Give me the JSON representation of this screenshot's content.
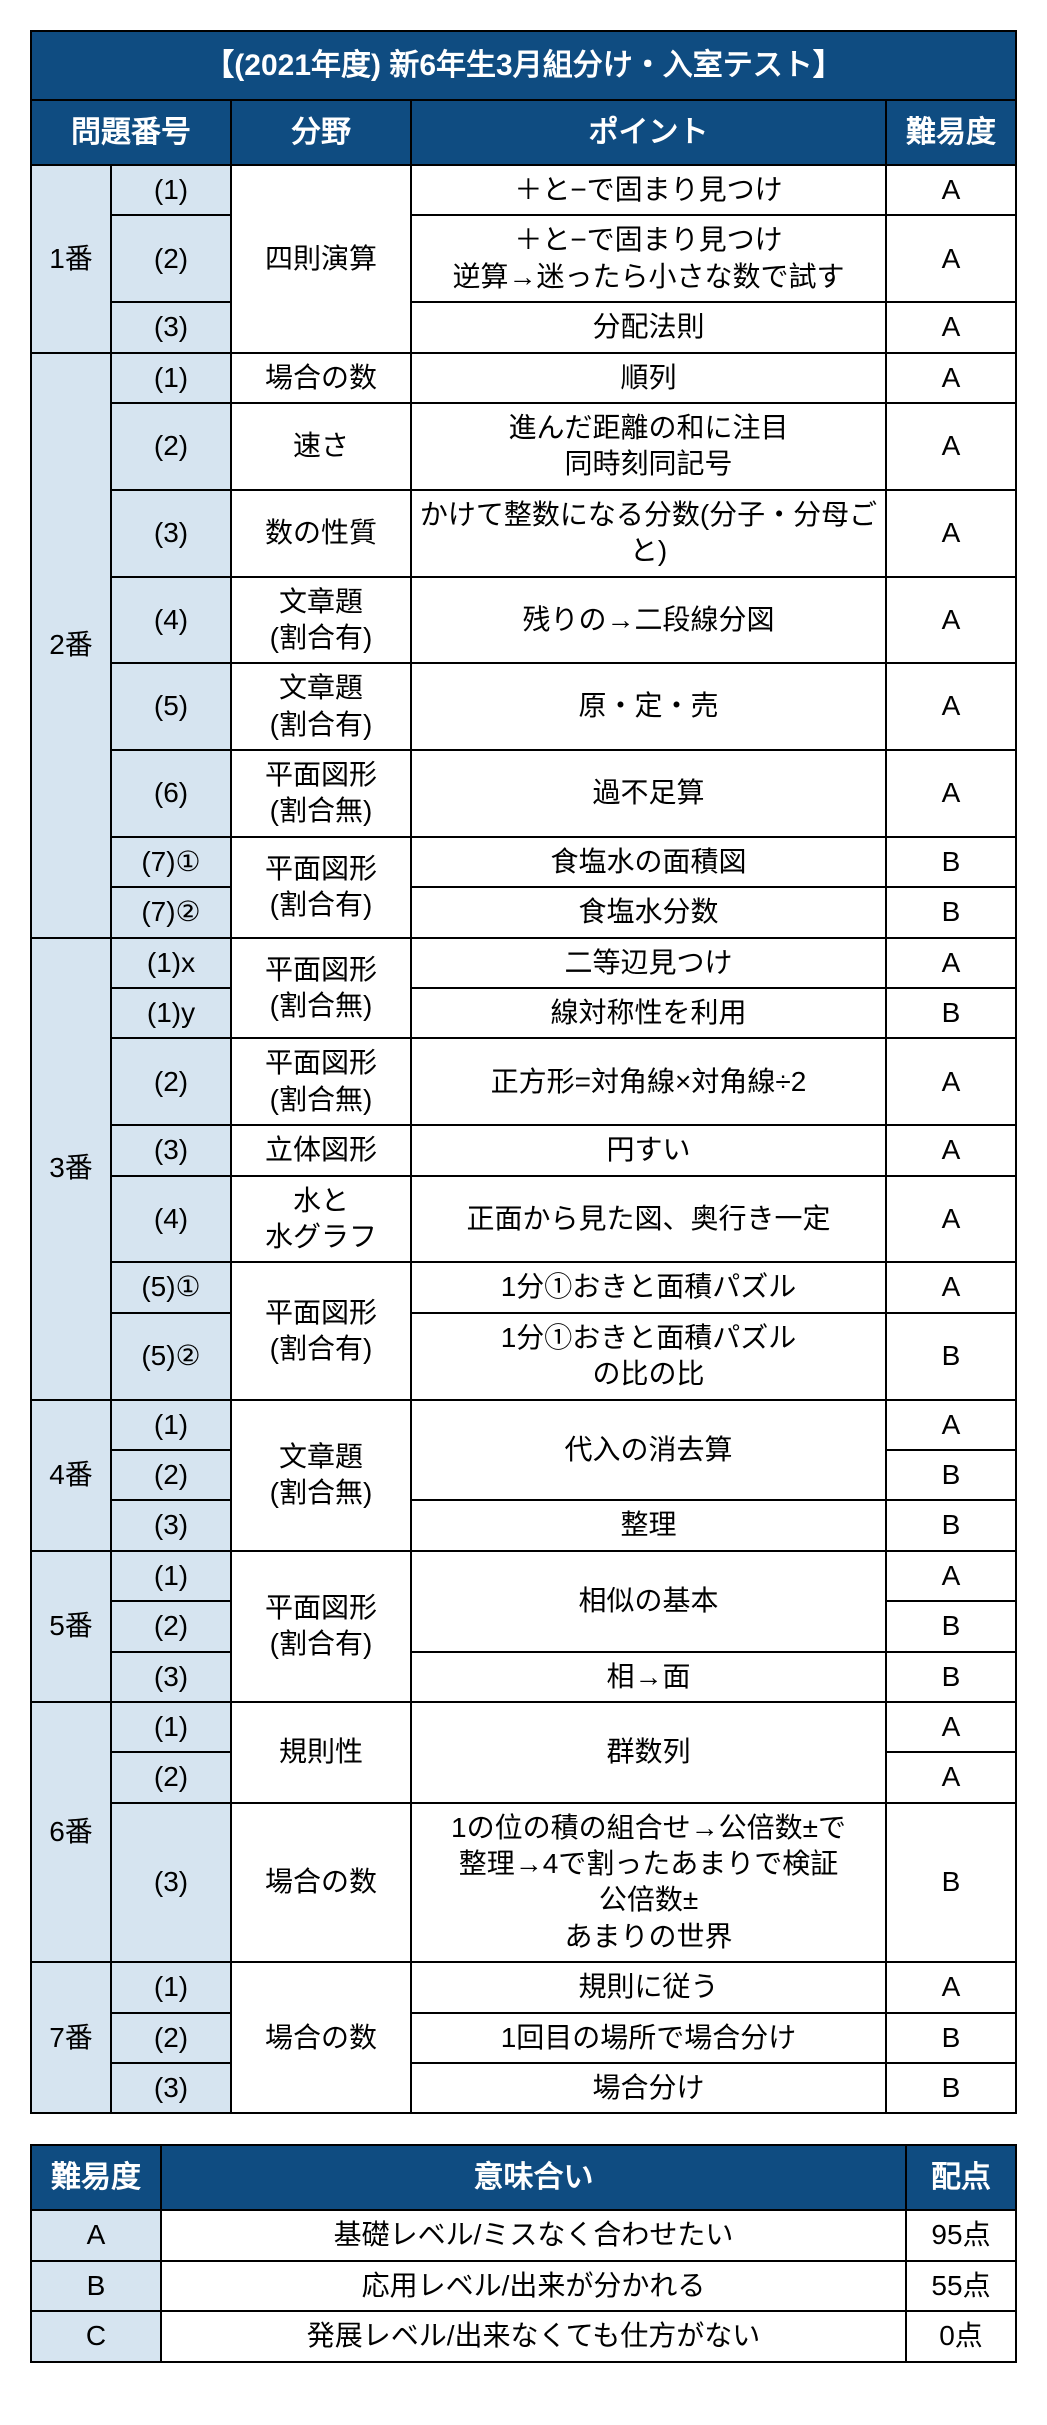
{
  "title": "【(2021年度) 新6年生3月組分け・入室テスト】",
  "headers": {
    "qnum": "問題番号",
    "field": "分野",
    "point": "ポイント",
    "diff": "難易度"
  },
  "legend_headers": {
    "diff": "難易度",
    "meaning": "意味合い",
    "pts": "配点"
  },
  "rows": [
    {
      "qnum": "1番",
      "qnum_span": 3,
      "sub": "(1)",
      "field": "四則演算",
      "field_span": 3,
      "point": "＋と−で固まり見つけ",
      "diff": "A"
    },
    {
      "sub": "(2)",
      "point": "＋と−で固まり見つけ\n逆算→迷ったら小さな数で試す",
      "diff": "A"
    },
    {
      "sub": "(3)",
      "point": "分配法則",
      "diff": "A"
    },
    {
      "qnum": "2番",
      "qnum_span": 8,
      "sub": "(1)",
      "field": "場合の数",
      "field_span": 1,
      "point": "順列",
      "diff": "A"
    },
    {
      "sub": "(2)",
      "field": "速さ",
      "field_span": 1,
      "point": "進んだ距離の和に注目\n同時刻同記号",
      "diff": "A"
    },
    {
      "sub": "(3)",
      "field": "数の性質",
      "field_span": 1,
      "point": "かけて整数になる分数(分子・分母ごと)",
      "diff": "A"
    },
    {
      "sub": "(4)",
      "field": "文章題\n(割合有)",
      "field_span": 1,
      "point": "残りの→二段線分図",
      "diff": "A"
    },
    {
      "sub": "(5)",
      "field": "文章題\n(割合有)",
      "field_span": 1,
      "point": "原・定・売",
      "diff": "A"
    },
    {
      "sub": "(6)",
      "field": "平面図形\n(割合無)",
      "field_span": 1,
      "point": "過不足算",
      "diff": "A"
    },
    {
      "sub": "(7)①",
      "field": "平面図形\n(割合有)",
      "field_span": 2,
      "point": "食塩水の面積図",
      "diff": "B"
    },
    {
      "sub": "(7)②",
      "point": "食塩水分数",
      "diff": "B"
    },
    {
      "qnum": "3番",
      "qnum_span": 7,
      "sub": "(1)x",
      "field": "平面図形\n(割合無)",
      "field_span": 2,
      "point": "二等辺見つけ",
      "diff": "A"
    },
    {
      "sub": "(1)y",
      "point": "線対称性を利用",
      "diff": "B"
    },
    {
      "sub": "(2)",
      "field": "平面図形\n(割合無)",
      "field_span": 1,
      "point": "正方形=対角線×対角線÷2",
      "diff": "A"
    },
    {
      "sub": "(3)",
      "field": "立体図形",
      "field_span": 1,
      "point": "円すい",
      "diff": "A"
    },
    {
      "sub": "(4)",
      "field": "水と\n水グラフ",
      "field_span": 1,
      "point": "正面から見た図、奥行き一定",
      "diff": "A"
    },
    {
      "sub": "(5)①",
      "field": "平面図形\n(割合有)",
      "field_span": 2,
      "point": "1分①おきと面積パズル",
      "diff": "A"
    },
    {
      "sub": "(5)②",
      "point": "1分①おきと面積パズル\nの比の比",
      "diff": "B"
    },
    {
      "qnum": "4番",
      "qnum_span": 3,
      "sub": "(1)",
      "field": "文章題\n(割合無)",
      "field_span": 3,
      "point": "代入の消去算",
      "point_span": 2,
      "diff": "A"
    },
    {
      "sub": "(2)",
      "diff": "B"
    },
    {
      "sub": "(3)",
      "point": "整理",
      "diff": "B"
    },
    {
      "qnum": "5番",
      "qnum_span": 3,
      "sub": "(1)",
      "field": "平面図形\n(割合有)",
      "field_span": 3,
      "point": "相似の基本",
      "point_span": 2,
      "diff": "A"
    },
    {
      "sub": "(2)",
      "diff": "B"
    },
    {
      "sub": "(3)",
      "point": "相→面",
      "diff": "B"
    },
    {
      "qnum": "6番",
      "qnum_span": 3,
      "sub": "(1)",
      "field": "規則性",
      "field_span": 2,
      "point": "群数列",
      "point_span": 2,
      "diff": "A"
    },
    {
      "sub": "(2)",
      "diff": "A"
    },
    {
      "sub": "(3)",
      "field": "場合の数",
      "field_span": 1,
      "point": "1の位の積の組合せ→公倍数±で\n整理→4で割ったあまりで検証\n公倍数±\nあまりの世界",
      "diff": "B"
    },
    {
      "qnum": "7番",
      "qnum_span": 3,
      "sub": "(1)",
      "field": "場合の数",
      "field_span": 3,
      "point": "規則に従う",
      "diff": "A"
    },
    {
      "sub": "(2)",
      "point": "1回目の場所で場合分け",
      "diff": "B"
    },
    {
      "sub": "(3)",
      "point": "場合分け",
      "diff": "B"
    }
  ],
  "legend": [
    {
      "diff": "A",
      "meaning": "基礎レベル/ミスなく合わせたい",
      "pts": "95点"
    },
    {
      "diff": "B",
      "meaning": "応用レベル/出来が分かれる",
      "pts": "55点"
    },
    {
      "diff": "C",
      "meaning": "発展レベル/出来なくても仕方がない",
      "pts": "0点"
    }
  ],
  "colors": {
    "header_bg": "#0f4c81",
    "header_fg": "#ffffff",
    "alt_bg": "#d6e4f0",
    "border": "#000000"
  }
}
